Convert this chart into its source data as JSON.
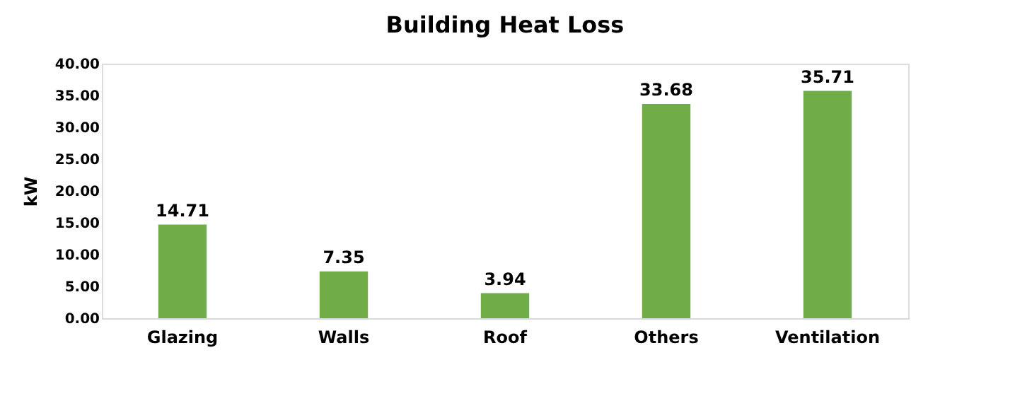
{
  "chart_data": {
    "type": "bar",
    "title": "Building Heat Loss",
    "ylabel": "kW",
    "categories": [
      "Glazing",
      "Walls",
      "Roof",
      "Others",
      "Ventilation"
    ],
    "values": [
      14.71,
      7.35,
      3.94,
      33.68,
      35.71
    ],
    "color": "#70ad47",
    "ylim": [
      0,
      40
    ],
    "yticks": [
      {
        "value": 0,
        "label": "0.00"
      },
      {
        "value": 5,
        "label": "5.00"
      },
      {
        "value": 10,
        "label": "10.00"
      },
      {
        "value": 15,
        "label": "15.00"
      },
      {
        "value": 20,
        "label": "20.00"
      },
      {
        "value": 25,
        "label": "25.00"
      },
      {
        "value": 30,
        "label": "30.00"
      },
      {
        "value": 35,
        "label": "35.00"
      },
      {
        "value": 40,
        "label": "40.00"
      }
    ],
    "data_labels": true,
    "grid": false
  }
}
